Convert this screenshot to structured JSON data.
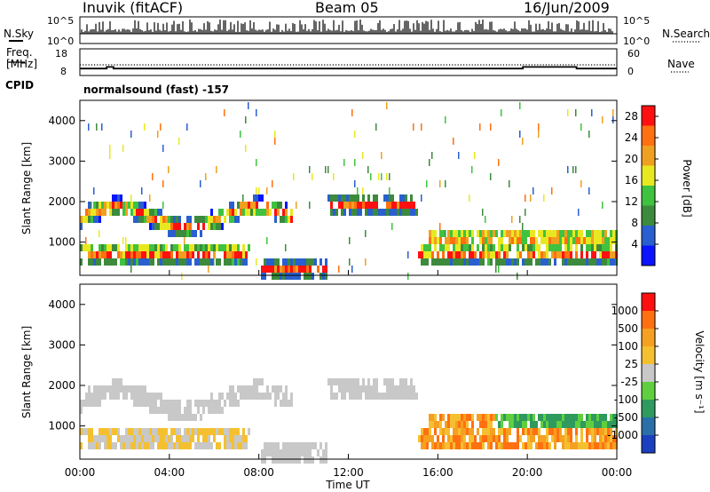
{
  "header": {
    "station": "Inuvik (fitACF)",
    "beam": "Beam 05",
    "date": "16/Jun/2009"
  },
  "side_labels": {
    "nsky": "N.Sky",
    "freq_line1": "Freq.",
    "freq_line2": "[MHz]",
    "cpid": "CPID",
    "nsearch": "N.Search",
    "nave": "Nave"
  },
  "cpid_text": "normalsound (fast) -157",
  "chart_data": [
    {
      "type": "line",
      "panel": "noise",
      "series": [
        {
          "name": "N.Sky"
        },
        {
          "name": "N.Search"
        }
      ],
      "y_ticks": [
        "10^5",
        "10^0"
      ],
      "y_ticks_right": [
        "10^5",
        "10^0"
      ],
      "x_range_hours": [
        0,
        24
      ]
    },
    {
      "type": "line",
      "panel": "frequency",
      "series": [
        {
          "name": "Freq.",
          "x_hours": [
            0,
            1.2,
            1.2,
            1.5,
            1.5,
            19.8,
            19.8,
            22.2,
            22.2,
            24
          ],
          "values": [
            10.6,
            10.6,
            11.2,
            11.2,
            10.6,
            10.6,
            11.2,
            11.2,
            10.6,
            10.6
          ]
        },
        {
          "name": "Nave",
          "x_hours": [
            0,
            24
          ],
          "values": [
            12.0,
            12.0
          ]
        }
      ],
      "y_ticks": [
        "18",
        "8"
      ],
      "y_ticks_right": [
        "60",
        "0"
      ],
      "x_range_hours": [
        0,
        24
      ]
    },
    {
      "type": "heatmap",
      "panel": "power",
      "ylabel": "Slant Range [km]",
      "ylim": [
        180,
        4500
      ],
      "y_ticks": [
        1000,
        2000,
        3000,
        4000
      ],
      "colorbar_label": "Power [dB]",
      "colorbar_ticks": [
        4,
        8,
        12,
        16,
        20,
        24,
        28
      ],
      "colorbar_range": [
        0,
        30
      ],
      "colorbar_colors": [
        "#0a14ff",
        "#2a5fcf",
        "#3d8a3d",
        "#3fc23f",
        "#e8e820",
        "#f0a020",
        "#ff7010",
        "#ff1010"
      ]
    },
    {
      "type": "heatmap",
      "panel": "velocity",
      "ylabel": "Slant Range [km]",
      "xlabel": "Time UT",
      "ylim": [
        180,
        4500
      ],
      "y_ticks": [
        1000,
        2000,
        3000,
        4000
      ],
      "x_ticks": [
        "00:00",
        "04:00",
        "08:00",
        "12:00",
        "16:00",
        "20:00",
        "00:00"
      ],
      "colorbar_label": "Velocity [m s⁻¹]",
      "colorbar_ticks": [
        "1000",
        "500",
        "100",
        "25",
        "-25",
        "-100",
        "-500",
        "-1000"
      ],
      "colorbar_colors": [
        "#1a3fbf",
        "#2a6fa8",
        "#2e9a5e",
        "#5fcf3f",
        "#c8c8c8",
        "#f5c030",
        "#f5a020",
        "#ff7010",
        "#ff1010"
      ]
    }
  ]
}
